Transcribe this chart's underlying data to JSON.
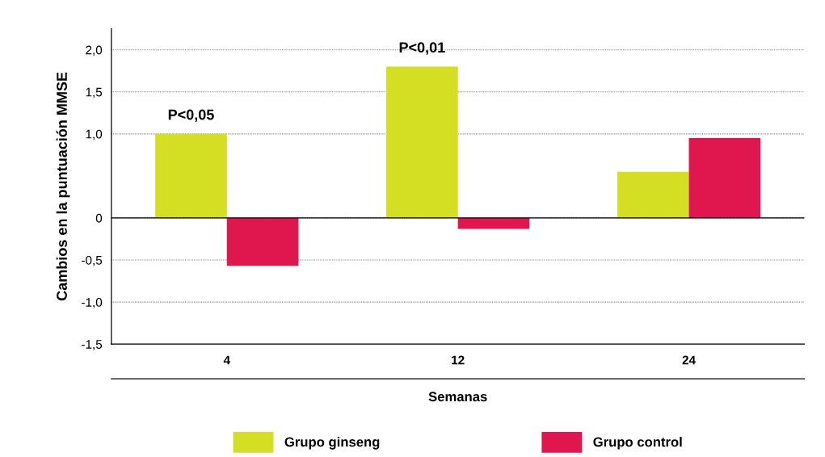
{
  "chart_data": {
    "type": "bar",
    "ylabel": "Cambios en la puntuación MMSE",
    "xlabel": "Semanas",
    "categories": [
      "4",
      "12",
      "24"
    ],
    "series": [
      {
        "name": "Grupo ginseng",
        "color": "#d4de22",
        "values": [
          1.0,
          1.8,
          0.55
        ]
      },
      {
        "name": "Grupo control",
        "color": "#e0174f",
        "values": [
          -0.57,
          -0.13,
          0.95
        ]
      }
    ],
    "ylim": [
      -1.5,
      2.25
    ],
    "yticks": [
      {
        "value": 2.0,
        "label": "2,0"
      },
      {
        "value": 1.5,
        "label": "1,5"
      },
      {
        "value": 1.0,
        "label": "1,0"
      },
      0,
      {
        "value": -0.5,
        "label": "-0,5"
      },
      {
        "value": -1.0,
        "label": "-1,0"
      },
      {
        "value": -1.5,
        "label": "-1,5"
      }
    ],
    "annotations": [
      {
        "text": "P<0,05",
        "x": "4",
        "y": 1.0
      },
      {
        "text": "P<0,01",
        "x": "12",
        "y": 1.8
      }
    ],
    "grid": "y",
    "legend": "bottom"
  }
}
